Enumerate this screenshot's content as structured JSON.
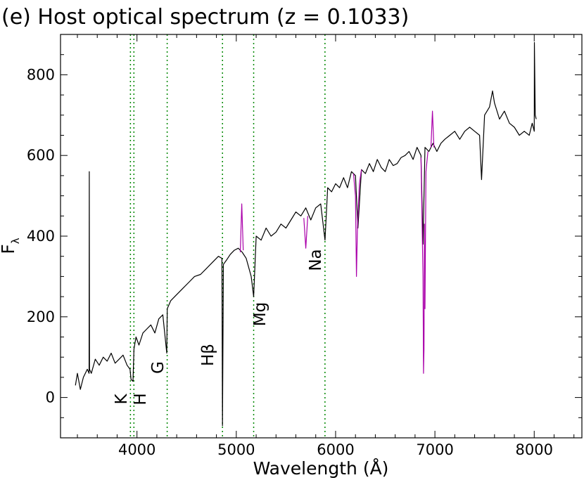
{
  "chart_data": {
    "type": "line",
    "title": "(e) Host optical spectrum (z = 0.1033)",
    "xlabel": "Wavelength (Å)",
    "ylabel_main": "F",
    "ylabel_sub": "λ",
    "xlim": [
      3230,
      8480
    ],
    "ylim": [
      -100,
      900
    ],
    "xticks": [
      4000,
      5000,
      6000,
      7000,
      8000
    ],
    "yticks": [
      0,
      200,
      400,
      600,
      800
    ],
    "grid": false,
    "colors": {
      "spectrum": "#000000",
      "telluric": "#aa00aa",
      "lines": "#008800"
    },
    "spectral_lines": [
      {
        "name": "K",
        "wavelength": 3934,
        "label": "K"
      },
      {
        "name": "H",
        "wavelength": 3969,
        "label": "H"
      },
      {
        "name": "G",
        "wavelength": 4304,
        "label": "G"
      },
      {
        "name": "Hbeta",
        "wavelength": 4861,
        "label": "Hβ"
      },
      {
        "name": "Mg",
        "wavelength": 5175,
        "label": "Mg"
      },
      {
        "name": "Na",
        "wavelength": 5893,
        "label": "Na"
      }
    ],
    "series": [
      {
        "color_key": "spectrum",
        "x": [
          3380,
          3400,
          3430,
          3460,
          3500,
          3518,
          3520,
          3522,
          3540,
          3580,
          3620,
          3660,
          3700,
          3740,
          3780,
          3820,
          3860,
          3900,
          3930,
          3940,
          3960,
          3970,
          3990,
          4020,
          4060,
          4100,
          4140,
          4180,
          4220,
          4260,
          4300,
          4305,
          4340,
          4400,
          4460,
          4520,
          4580,
          4640,
          4700,
          4760,
          4820,
          4855,
          4861,
          4870,
          4900,
          4940,
          4980,
          5020,
          5060,
          5100,
          5150,
          5175,
          5200,
          5250,
          5300,
          5350,
          5400,
          5450,
          5500,
          5550,
          5600,
          5650,
          5700,
          5750,
          5800,
          5850,
          5893,
          5920,
          5960,
          6000,
          6040,
          6080,
          6120,
          6160,
          6200,
          6225,
          6260,
          6300,
          6340,
          6380,
          6420,
          6460,
          6500,
          6540,
          6580,
          6620,
          6660,
          6700,
          6740,
          6780,
          6820,
          6860,
          6880,
          6900,
          6940,
          6980,
          7020,
          7060,
          7100,
          7150,
          7200,
          7250,
          7300,
          7350,
          7400,
          7450,
          7470,
          7500,
          7550,
          7580,
          7600,
          7650,
          7700,
          7750,
          7800,
          7850,
          7900,
          7950,
          7980,
          8000,
          8002,
          8010,
          8020
        ],
        "y": [
          30,
          60,
          20,
          50,
          70,
          60,
          560,
          70,
          60,
          95,
          80,
          100,
          90,
          110,
          85,
          95,
          105,
          80,
          70,
          45,
          40,
          120,
          150,
          130,
          160,
          170,
          180,
          160,
          195,
          205,
          110,
          220,
          240,
          255,
          270,
          285,
          300,
          305,
          320,
          335,
          350,
          345,
          -70,
          330,
          340,
          355,
          365,
          370,
          360,
          345,
          300,
          250,
          400,
          390,
          420,
          400,
          410,
          430,
          420,
          440,
          460,
          450,
          470,
          440,
          470,
          480,
          390,
          520,
          510,
          530,
          520,
          545,
          520,
          560,
          550,
          420,
          565,
          555,
          580,
          560,
          590,
          570,
          560,
          590,
          575,
          580,
          595,
          600,
          610,
          590,
          620,
          600,
          380,
          620,
          610,
          630,
          610,
          630,
          640,
          650,
          660,
          640,
          660,
          670,
          660,
          650,
          540,
          700,
          720,
          760,
          730,
          690,
          710,
          680,
          670,
          650,
          660,
          650,
          680,
          660,
          880,
          700,
          690
        ]
      },
      {
        "color_key": "telluric",
        "x": [
          6860,
          6880,
          6885,
          6890,
          6895,
          6900,
          6905,
          6910,
          6930
        ],
        "y": [
          595,
          300,
          60,
          120,
          430,
          220,
          400,
          560,
          610
        ]
      },
      {
        "color_key": "telluric",
        "x": [
          6180,
          6200,
          6210,
          6220,
          6240,
          6260
        ],
        "y": [
          555,
          500,
          300,
          420,
          530,
          565
        ]
      },
      {
        "color_key": "telluric",
        "x": [
          5680,
          5700,
          5720
        ],
        "y": [
          445,
          370,
          450
        ]
      },
      {
        "color_key": "telluric",
        "x": [
          5040,
          5055,
          5070
        ],
        "y": [
          360,
          480,
          365
        ]
      },
      {
        "color_key": "telluric",
        "x": [
          6960,
          6975,
          6990
        ],
        "y": [
          620,
          710,
          620
        ]
      }
    ]
  }
}
